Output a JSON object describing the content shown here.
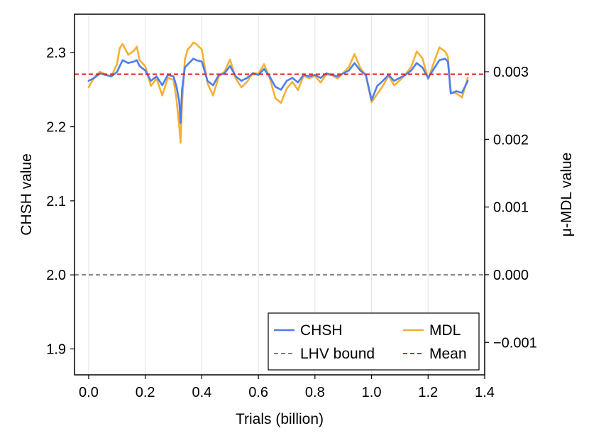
{
  "chart_data": {
    "type": "line",
    "xlabel": "Trials (billion)",
    "ylabel": "CHSH value",
    "y2label": "μ-MDL value",
    "xlim": [
      -0.05,
      1.4
    ],
    "ylim": [
      1.865,
      2.352
    ],
    "y2lim": [
      -0.00148,
      0.00385
    ],
    "xticks": [
      0.0,
      0.2,
      0.4,
      0.6,
      0.8,
      1.0,
      1.2,
      1.4
    ],
    "xtick_labels": [
      "0.0",
      "0.2",
      "0.4",
      "0.6",
      "0.8",
      "1.0",
      "1.2",
      "1.4"
    ],
    "yticks": [
      1.9,
      2.0,
      2.1,
      2.2,
      2.3
    ],
    "ytick_labels": [
      "1.9",
      "2.0",
      "2.1",
      "2.2",
      "2.3"
    ],
    "y2ticks": [
      -0.001,
      0.0,
      0.001,
      0.002,
      0.003
    ],
    "y2tick_labels": [
      "−0.001",
      "0.000",
      "0.001",
      "0.002",
      "0.003"
    ],
    "grid": true,
    "legend_position": "bottom-right",
    "series": [
      {
        "name": "CHSH",
        "axis": "left",
        "color": "#4c7ef0",
        "x": [
          0.0,
          0.02,
          0.04,
          0.06,
          0.08,
          0.1,
          0.11,
          0.12,
          0.14,
          0.16,
          0.17,
          0.18,
          0.2,
          0.22,
          0.24,
          0.26,
          0.28,
          0.3,
          0.31,
          0.32,
          0.325,
          0.33,
          0.34,
          0.35,
          0.36,
          0.37,
          0.38,
          0.4,
          0.42,
          0.44,
          0.46,
          0.48,
          0.5,
          0.52,
          0.54,
          0.56,
          0.58,
          0.6,
          0.62,
          0.64,
          0.66,
          0.68,
          0.7,
          0.72,
          0.74,
          0.76,
          0.78,
          0.8,
          0.82,
          0.84,
          0.86,
          0.88,
          0.9,
          0.92,
          0.94,
          0.96,
          0.98,
          1.0,
          1.02,
          1.04,
          1.06,
          1.08,
          1.1,
          1.12,
          1.14,
          1.16,
          1.18,
          1.2,
          1.22,
          1.24,
          1.26,
          1.27,
          1.28,
          1.3,
          1.32,
          1.34
        ],
        "y": [
          2.262,
          2.266,
          2.272,
          2.27,
          2.268,
          2.274,
          2.282,
          2.29,
          2.286,
          2.288,
          2.29,
          2.282,
          2.276,
          2.262,
          2.268,
          2.256,
          2.27,
          2.268,
          2.255,
          2.235,
          2.205,
          2.25,
          2.28,
          2.284,
          2.288,
          2.292,
          2.29,
          2.288,
          2.262,
          2.256,
          2.27,
          2.272,
          2.282,
          2.268,
          2.262,
          2.266,
          2.272,
          2.27,
          2.278,
          2.268,
          2.254,
          2.25,
          2.262,
          2.266,
          2.26,
          2.27,
          2.268,
          2.27,
          2.266,
          2.272,
          2.27,
          2.268,
          2.272,
          2.276,
          2.286,
          2.276,
          2.27,
          2.236,
          2.255,
          2.262,
          2.27,
          2.262,
          2.266,
          2.27,
          2.276,
          2.286,
          2.28,
          2.266,
          2.278,
          2.29,
          2.292,
          2.288,
          2.245,
          2.248,
          2.246,
          2.262
        ]
      },
      {
        "name": "MDL",
        "axis": "right",
        "color": "#f5b033",
        "x": [
          0.0,
          0.02,
          0.04,
          0.06,
          0.08,
          0.1,
          0.11,
          0.12,
          0.14,
          0.16,
          0.17,
          0.18,
          0.2,
          0.22,
          0.24,
          0.26,
          0.28,
          0.3,
          0.31,
          0.32,
          0.325,
          0.33,
          0.34,
          0.35,
          0.36,
          0.37,
          0.38,
          0.4,
          0.42,
          0.44,
          0.46,
          0.48,
          0.5,
          0.52,
          0.54,
          0.56,
          0.58,
          0.6,
          0.62,
          0.64,
          0.66,
          0.68,
          0.7,
          0.72,
          0.74,
          0.76,
          0.78,
          0.8,
          0.82,
          0.84,
          0.86,
          0.88,
          0.9,
          0.92,
          0.94,
          0.96,
          0.98,
          1.0,
          1.02,
          1.04,
          1.06,
          1.08,
          1.1,
          1.12,
          1.14,
          1.16,
          1.18,
          1.2,
          1.22,
          1.24,
          1.26,
          1.27,
          1.28,
          1.3,
          1.32,
          1.34
        ],
        "y": [
          0.00277,
          0.00292,
          0.003,
          0.00296,
          0.00293,
          0.00311,
          0.00335,
          0.00341,
          0.00325,
          0.00331,
          0.00337,
          0.00317,
          0.00308,
          0.00279,
          0.0029,
          0.00265,
          0.00291,
          0.00288,
          0.00261,
          0.0022,
          0.00195,
          0.00252,
          0.00318,
          0.00333,
          0.00337,
          0.00343,
          0.00341,
          0.00333,
          0.00283,
          0.00265,
          0.00293,
          0.003,
          0.00318,
          0.0029,
          0.00277,
          0.00285,
          0.00298,
          0.00297,
          0.00311,
          0.00291,
          0.00261,
          0.00254,
          0.00275,
          0.00285,
          0.00273,
          0.00294,
          0.0029,
          0.00294,
          0.00284,
          0.00296,
          0.00295,
          0.0029,
          0.00298,
          0.00307,
          0.00326,
          0.00306,
          0.00294,
          0.00255,
          0.00267,
          0.00279,
          0.00294,
          0.0028,
          0.00287,
          0.00296,
          0.00307,
          0.0033,
          0.0032,
          0.00289,
          0.00313,
          0.00336,
          0.0033,
          0.00322,
          0.0027,
          0.00268,
          0.00262,
          0.00291
        ]
      },
      {
        "name": "LHV bound",
        "axis": "left",
        "color": "#808080",
        "style": "dashed",
        "value": 2.0
      },
      {
        "name": "Mean",
        "axis": "left",
        "color": "#e0201b",
        "style": "dashed",
        "value": 2.271
      }
    ],
    "legend": {
      "position": "bottom-right",
      "columns": 2,
      "entries": [
        "CHSH",
        "MDL",
        "LHV bound",
        "Mean"
      ]
    }
  }
}
